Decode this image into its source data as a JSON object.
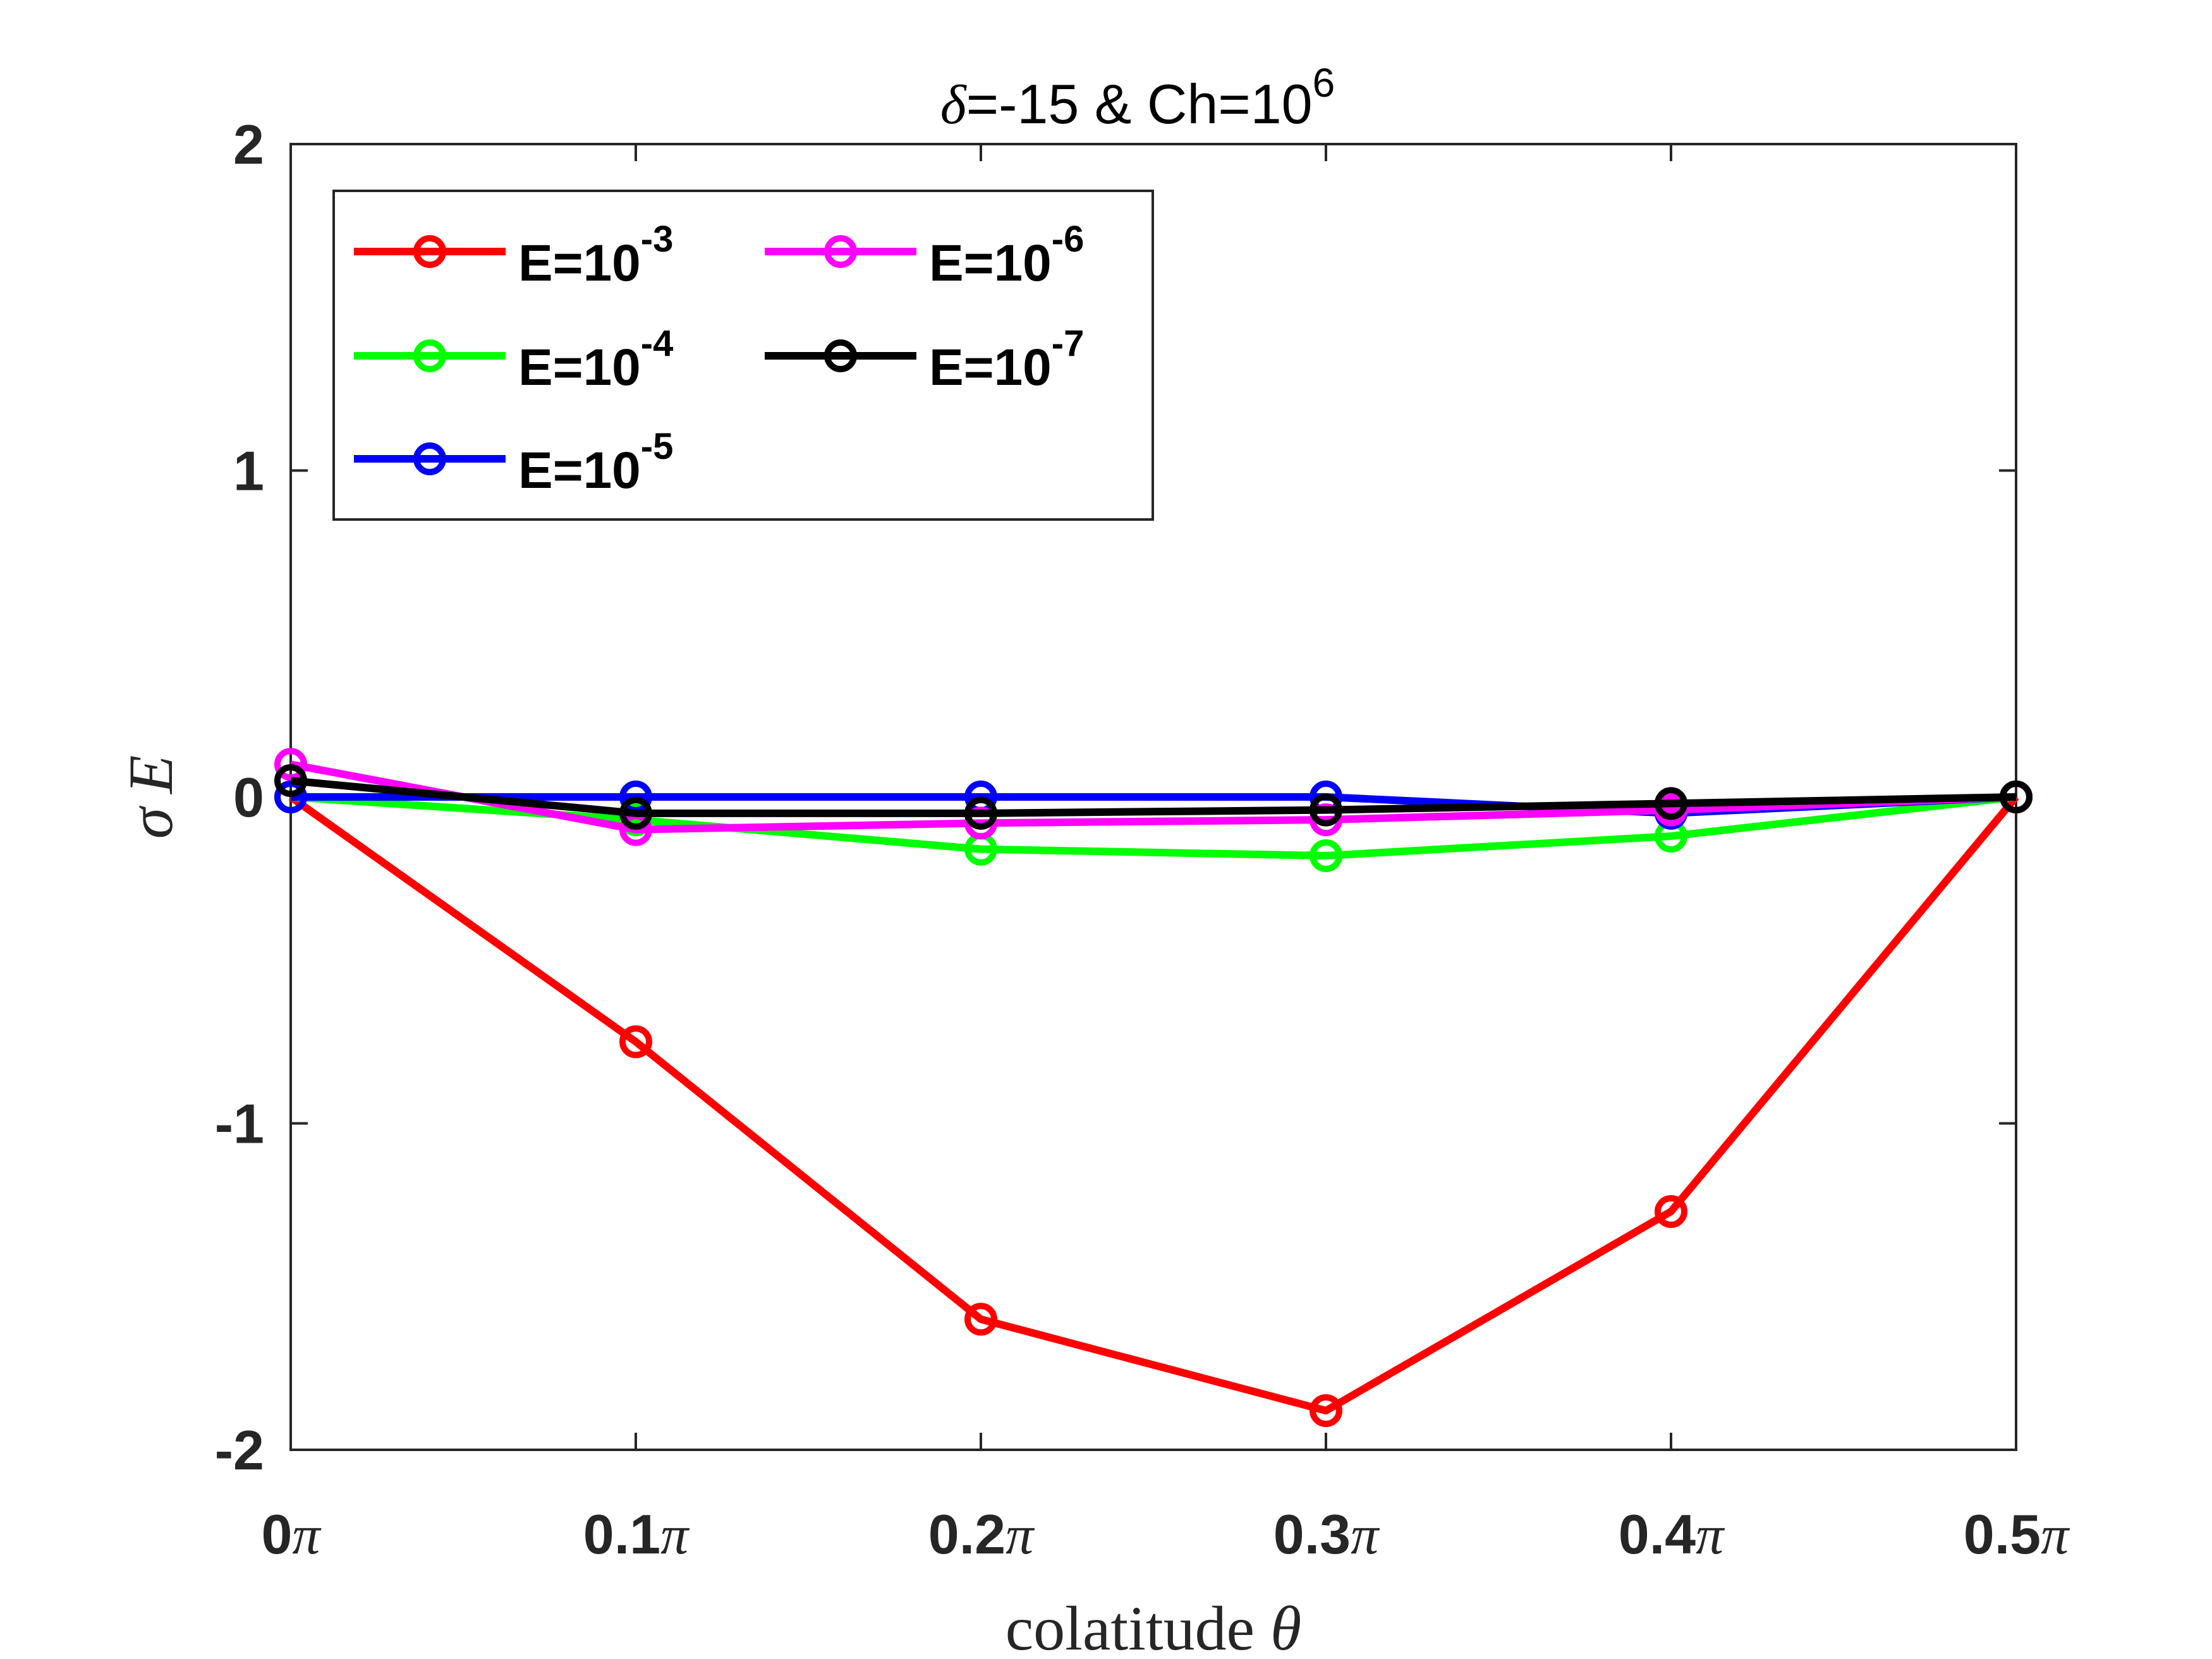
{
  "chart_data": {
    "type": "line",
    "title": {
      "prefix": "δ",
      "main": "=-15 & Ch=10",
      "exponent": "6"
    },
    "xlabel": {
      "text": "colatitude ",
      "symbol": "θ"
    },
    "ylabel": {
      "symbol": "σ",
      "var": "E"
    },
    "x": [
      0,
      0.1,
      0.2,
      0.3,
      0.4,
      0.5
    ],
    "x_unit": "π",
    "xlim": [
      0,
      0.5
    ],
    "ylim": [
      -2,
      2
    ],
    "xticks": [
      {
        "num": "0",
        "sym": "π"
      },
      {
        "num": "0.1",
        "sym": "π"
      },
      {
        "num": "0.2",
        "sym": "π"
      },
      {
        "num": "0.3",
        "sym": "π"
      },
      {
        "num": "0.4",
        "sym": "π"
      },
      {
        "num": "0.5",
        "sym": "π"
      }
    ],
    "yticks": [
      {
        "value": 2,
        "label": "2"
      },
      {
        "value": 1,
        "label": "1"
      },
      {
        "value": 0,
        "label": "0"
      },
      {
        "value": -1,
        "label": "-1"
      },
      {
        "value": -2,
        "label": "-2"
      }
    ],
    "grid": false,
    "legend": {
      "placement": "top-left",
      "columns": 2
    },
    "series": [
      {
        "name": "E=10",
        "exp": "-3",
        "color": "#ff0000",
        "values": [
          0,
          -0.75,
          -1.6,
          -1.88,
          -1.27,
          0
        ]
      },
      {
        "name": "E=10",
        "exp": "-4",
        "color": "#00ff00",
        "values": [
          0,
          -0.07,
          -0.16,
          -0.18,
          -0.12,
          0
        ]
      },
      {
        "name": "E=10",
        "exp": "-5",
        "color": "#0000ff",
        "values": [
          0,
          0,
          0,
          0,
          -0.05,
          0
        ]
      },
      {
        "name": "E=10",
        "exp": "-6",
        "color": "#ff00ff",
        "values": [
          0.1,
          -0.1,
          -0.08,
          -0.07,
          -0.04,
          0
        ]
      },
      {
        "name": "E=10",
        "exp": "-7",
        "color": "#000000",
        "values": [
          0.05,
          -0.05,
          -0.05,
          -0.04,
          -0.02,
          0
        ]
      }
    ]
  }
}
